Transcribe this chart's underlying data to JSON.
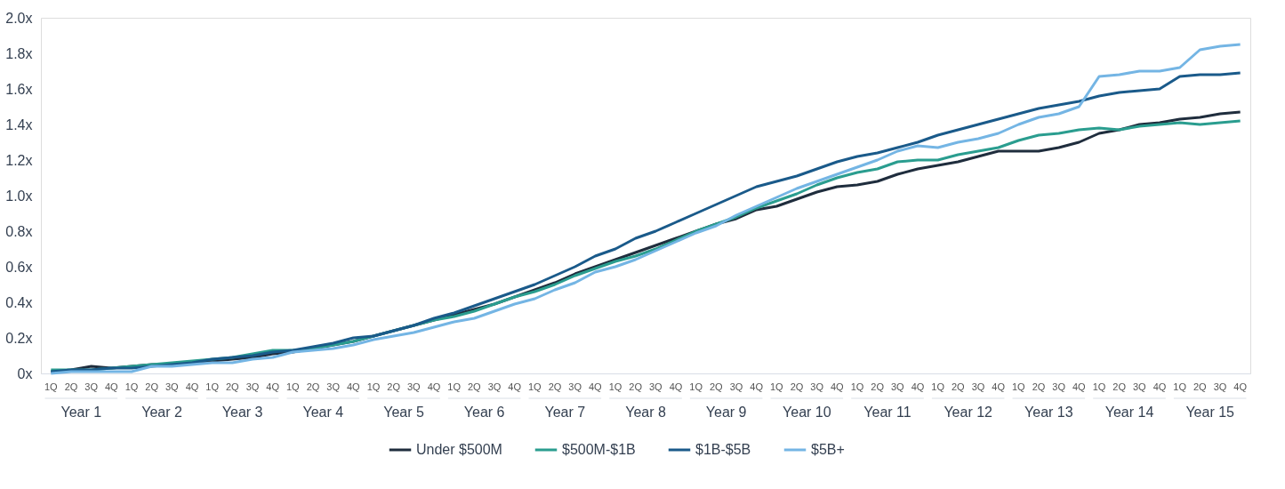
{
  "chart_data": {
    "type": "line",
    "categories": [
      "1Q",
      "2Q",
      "3Q",
      "4Q",
      "1Q",
      "2Q",
      "3Q",
      "4Q",
      "1Q",
      "2Q",
      "3Q",
      "4Q",
      "1Q",
      "2Q",
      "3Q",
      "4Q",
      "1Q",
      "2Q",
      "3Q",
      "4Q",
      "1Q",
      "2Q",
      "3Q",
      "4Q",
      "1Q",
      "2Q",
      "3Q",
      "4Q",
      "1Q",
      "2Q",
      "3Q",
      "4Q",
      "1Q",
      "2Q",
      "3Q",
      "4Q",
      "1Q",
      "2Q",
      "3Q",
      "4Q",
      "1Q",
      "2Q",
      "3Q",
      "4Q",
      "1Q",
      "2Q",
      "3Q",
      "4Q",
      "1Q",
      "2Q",
      "3Q",
      "4Q",
      "1Q",
      "2Q",
      "3Q",
      "4Q",
      "1Q",
      "2Q",
      "3Q",
      "4Q"
    ],
    "annotations": [
      "Year 1",
      "Year 2",
      "Year 3",
      "Year 4",
      "Year 5",
      "Year 6",
      "Year 7",
      "Year 8",
      "Year 9",
      "Year 10",
      "Year 11",
      "Year 12",
      "Year 13",
      "Year 14",
      "Year 15"
    ],
    "series": [
      {
        "name": "Under $500M",
        "color": "#1f2d3d",
        "values": [
          0.01,
          0.02,
          0.04,
          0.03,
          0.04,
          0.05,
          0.05,
          0.06,
          0.07,
          0.08,
          0.09,
          0.11,
          0.12,
          0.14,
          0.16,
          0.18,
          0.21,
          0.24,
          0.27,
          0.3,
          0.33,
          0.36,
          0.39,
          0.43,
          0.47,
          0.51,
          0.56,
          0.6,
          0.64,
          0.68,
          0.72,
          0.76,
          0.8,
          0.84,
          0.87,
          0.92,
          0.94,
          0.98,
          1.02,
          1.05,
          1.06,
          1.08,
          1.12,
          1.15,
          1.17,
          1.19,
          1.22,
          1.25,
          1.25,
          1.25,
          1.27,
          1.3,
          1.35,
          1.37,
          1.4,
          1.41,
          1.43,
          1.44,
          1.46,
          1.47
        ]
      },
      {
        "name": "$500M-$1B",
        "color": "#2a9d8f",
        "values": [
          0.02,
          0.02,
          0.02,
          0.03,
          0.04,
          0.05,
          0.06,
          0.07,
          0.08,
          0.09,
          0.11,
          0.13,
          0.13,
          0.14,
          0.16,
          0.18,
          0.21,
          0.24,
          0.27,
          0.3,
          0.32,
          0.35,
          0.39,
          0.43,
          0.46,
          0.5,
          0.55,
          0.59,
          0.63,
          0.66,
          0.7,
          0.75,
          0.8,
          0.84,
          0.88,
          0.93,
          0.97,
          1.01,
          1.06,
          1.1,
          1.13,
          1.15,
          1.19,
          1.2,
          1.2,
          1.23,
          1.25,
          1.27,
          1.31,
          1.34,
          1.35,
          1.37,
          1.38,
          1.37,
          1.39,
          1.4,
          1.41,
          1.4,
          1.41,
          1.42
        ]
      },
      {
        "name": "$1B-$5B",
        "color": "#1a5a8a",
        "values": [
          0.01,
          0.02,
          0.02,
          0.03,
          0.03,
          0.04,
          0.05,
          0.06,
          0.08,
          0.09,
          0.1,
          0.12,
          0.13,
          0.15,
          0.17,
          0.2,
          0.21,
          0.24,
          0.27,
          0.31,
          0.34,
          0.38,
          0.42,
          0.46,
          0.5,
          0.55,
          0.6,
          0.66,
          0.7,
          0.76,
          0.8,
          0.85,
          0.9,
          0.95,
          1.0,
          1.05,
          1.08,
          1.11,
          1.15,
          1.19,
          1.22,
          1.24,
          1.27,
          1.3,
          1.34,
          1.37,
          1.4,
          1.43,
          1.46,
          1.49,
          1.51,
          1.53,
          1.56,
          1.58,
          1.59,
          1.6,
          1.67,
          1.68,
          1.68,
          1.69
        ]
      },
      {
        "name": "$5B+",
        "color": "#74b5e4",
        "values": [
          0.0,
          0.01,
          0.01,
          0.01,
          0.01,
          0.04,
          0.04,
          0.05,
          0.06,
          0.06,
          0.08,
          0.09,
          0.12,
          0.13,
          0.14,
          0.16,
          0.19,
          0.21,
          0.23,
          0.26,
          0.29,
          0.31,
          0.35,
          0.39,
          0.42,
          0.47,
          0.51,
          0.57,
          0.6,
          0.64,
          0.69,
          0.74,
          0.79,
          0.83,
          0.89,
          0.94,
          0.99,
          1.04,
          1.08,
          1.12,
          1.16,
          1.2,
          1.25,
          1.28,
          1.27,
          1.3,
          1.32,
          1.35,
          1.4,
          1.44,
          1.46,
          1.5,
          1.67,
          1.68,
          1.7,
          1.7,
          1.72,
          1.82,
          1.84,
          1.85
        ]
      }
    ],
    "ylim": [
      0,
      2.0
    ],
    "yticks": [
      {
        "value": 0,
        "label": "0x"
      },
      {
        "value": 0.2,
        "label": "0.2x"
      },
      {
        "value": 0.4,
        "label": "0.4x"
      },
      {
        "value": 0.6,
        "label": "0.6x"
      },
      {
        "value": 0.8,
        "label": "0.8x"
      },
      {
        "value": 1.0,
        "label": "1.0x"
      },
      {
        "value": 1.2,
        "label": "1.2x"
      },
      {
        "value": 1.4,
        "label": "1.4x"
      },
      {
        "value": 1.6,
        "label": "1.6x"
      },
      {
        "value": 1.8,
        "label": "1.8x"
      },
      {
        "value": 2.0,
        "label": "2.0x"
      }
    ],
    "grid": false,
    "legend": "bottom",
    "marker": "none",
    "line_style": "solid"
  }
}
